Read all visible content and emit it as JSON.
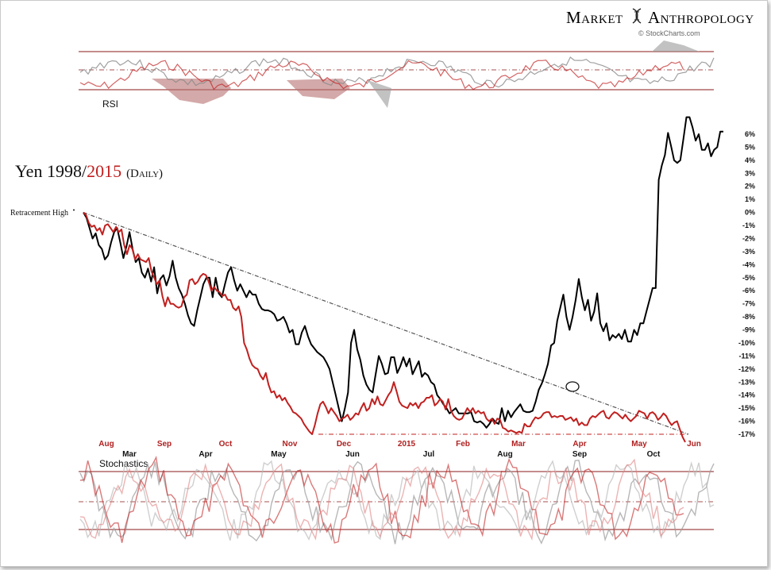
{
  "brand": {
    "name_left": "Market",
    "name_right": "Anthropology",
    "source": "© StockCharts.com"
  },
  "title": {
    "prefix": "Yen 1998/",
    "year_red": "2015",
    "suffix": "(Daily)"
  },
  "annotations": {
    "retracement_high": "Retracement High"
  },
  "colors": {
    "series_1998": "#000000",
    "series_2015": "#c0201f",
    "band_line": "#8b1a1a",
    "rsi_fill_red": "#b86f6f",
    "rsi_fill_gray": "#9a9a9a",
    "trendline": "#555555"
  },
  "panels": {
    "rsi_label": "RSI",
    "stochastics_label": "Stochastics"
  },
  "chart_data": {
    "type": "line",
    "ylim": [
      -17,
      6
    ],
    "y_ticks": [
      "6%",
      "5%",
      "4%",
      "3%",
      "2%",
      "1%",
      "0%",
      "-1%",
      "-2%",
      "-3%",
      "-4%",
      "-5%",
      "-6%",
      "-7%",
      "-8%",
      "-9%",
      "-10%",
      "-11%",
      "-12%",
      "-13%",
      "-14%",
      "-15%",
      "-16%",
      "-17%"
    ],
    "x_labels_2015": [
      "Aug",
      "Sep",
      "Oct",
      "Nov",
      "Dec",
      "2015",
      "Feb",
      "Mar",
      "Apr",
      "May",
      "Jun"
    ],
    "x_labels_1998": [
      "Mar",
      "Apr",
      "May",
      "Jun",
      "Jul",
      "Aug",
      "Sep",
      "Oct"
    ],
    "series": [
      {
        "name": "1998",
        "values": [
          0,
          -0.4,
          -1.2,
          -2.0,
          -1.6,
          -2.5,
          -2.8,
          -3.6,
          -3.3,
          -2.3,
          -1.5,
          -1.2,
          -2.3,
          -3.5,
          -2.6,
          -1.5,
          -2.8,
          -3.8,
          -3.5,
          -4.6,
          -5.0,
          -4.3,
          -5.3,
          -4.2,
          -6.2,
          -5.1,
          -4.8,
          -5.6,
          -4.9,
          -3.7,
          -5.0,
          -5.8,
          -6.3,
          -7.0,
          -7.9,
          -8.5,
          -8.7,
          -7.5,
          -6.5,
          -5.5,
          -5.0,
          -5.0,
          -6.5,
          -5.0,
          -6.2,
          -6.5,
          -5.5,
          -4.6,
          -4.2,
          -5.2,
          -6.0,
          -5.5,
          -6.0,
          -6.5,
          -6.0,
          -6.3,
          -6.3,
          -7.0,
          -7.4,
          -7.5,
          -7.5,
          -7.6,
          -7.8,
          -8.3,
          -8.2,
          -8.0,
          -8.5,
          -9.2,
          -9.0,
          -10.1,
          -10.1,
          -9.2,
          -8.7,
          -9.5,
          -10.1,
          -10.4,
          -10.7,
          -10.9,
          -11.1,
          -11.5,
          -12.0,
          -13.0,
          -14.0,
          -15.0,
          -16.0,
          -15.0,
          -13.8,
          -10.0,
          -9.0,
          -10.5,
          -11.3,
          -12.5,
          -13.2,
          -13.6,
          -13.8,
          -12.4,
          -11.0,
          -11.6,
          -12.4,
          -12.3,
          -11.1,
          -11.1,
          -12.3,
          -11.8,
          -11.1,
          -11.8,
          -11.2,
          -12.4,
          -11.9,
          -11.4,
          -12.6,
          -12.3,
          -12.5,
          -13.0,
          -13.2,
          -14.0,
          -14.3,
          -14.7,
          -15.0,
          -15.4,
          -15.2,
          -15.0,
          -15.4,
          -15.4,
          -15.4,
          -15.4,
          -15.3,
          -16.0,
          -16.1,
          -16.0,
          -16.2,
          -16.5,
          -16.2,
          -15.8,
          -16.1,
          -16.2,
          -15.0,
          -16.0,
          -15.2,
          -15.7,
          -15.3,
          -15.0,
          -14.7,
          -15.2,
          -15.3,
          -15.3,
          -15.2,
          -14.5,
          -13.6,
          -13.1,
          -12.4,
          -11.6,
          -10.2,
          -10.0,
          -8.3,
          -7.3,
          -6.3,
          -8.0,
          -9.0,
          -8.0,
          -6.7,
          -5.1,
          -6.5,
          -7.5,
          -6.7,
          -8.3,
          -7.6,
          -6.2,
          -8.5,
          -9.1,
          -8.5,
          -9.8,
          -9.4,
          -9.6,
          -9.3,
          -9.7,
          -9.0,
          -9.9,
          -9.9,
          -9.0,
          -9.4,
          -8.5,
          -8.5,
          -7.6,
          -6.7,
          -5.8,
          -5.8,
          2.5,
          3.6,
          4.4,
          6.1,
          5.1,
          4.0,
          3.8,
          4.0,
          5.6,
          7.3,
          7.3,
          6.5,
          5.5,
          6.0,
          4.8,
          4.8,
          5.3,
          4.3,
          4.8,
          5.0,
          6.2,
          6.2
        ]
      },
      {
        "name": "2015",
        "values": [
          0,
          -0.2,
          -0.8,
          -1.1,
          -1.0,
          -1.4,
          -1.2,
          -1.7,
          -1.0,
          -0.9,
          -1.2,
          -1.5,
          -1.1,
          -1.5,
          -1.3,
          -2.5,
          -3.2,
          -2.5,
          -2.8,
          -3.6,
          -3.2,
          -3.6,
          -3.7,
          -3.8,
          -3.5,
          -4.5,
          -5.0,
          -5.5,
          -5.2,
          -6.4,
          -7.2,
          -6.5,
          -7.0,
          -7.0,
          -7.2,
          -7.3,
          -7.2,
          -6.5,
          -6.3,
          -5.2,
          -5.1,
          -5.5,
          -5.3,
          -4.9,
          -4.7,
          -4.8,
          -5.3,
          -6.0,
          -5.7,
          -6.0,
          -6.1,
          -6.4,
          -6.3,
          -6.7,
          -6.7,
          -7.3,
          -7.5,
          -7.2,
          -8.0,
          -10.0,
          -10.5,
          -11.2,
          -11.7,
          -11.9,
          -12.0,
          -12.5,
          -12.8,
          -12.3,
          -13.2,
          -13.8,
          -13.7,
          -14.2,
          -14.0,
          -14.4,
          -14.2,
          -14.6,
          -14.9,
          -15.3,
          -15.4,
          -15.6,
          -15.8,
          -16.2,
          -16.5,
          -16.8,
          -17.0,
          -16.3,
          -15.4,
          -14.7,
          -14.5,
          -14.9,
          -15.4,
          -15.0,
          -15.3,
          -15.6,
          -16.0,
          -15.8,
          -15.7,
          -15.5,
          -15.9,
          -15.7,
          -15.4,
          -15.5,
          -15.0,
          -14.6,
          -15.2,
          -15.0,
          -14.3,
          -14.7,
          -14.1,
          -14.7,
          -14.8,
          -14.4,
          -14.0,
          -13.7,
          -13.0,
          -13.7,
          -14.5,
          -14.8,
          -14.9,
          -15.0,
          -14.6,
          -14.8,
          -14.6,
          -15.0,
          -14.6,
          -14.5,
          -14.2,
          -14.2,
          -14.0,
          -14.8,
          -14.6,
          -14.3,
          -14.5,
          -15.1,
          -14.3,
          -15.2,
          -15.6,
          -15.8,
          -15.9,
          -15.8,
          -15.4,
          -15.0,
          -15.3,
          -15.0,
          -15.4,
          -15.2,
          -15.4,
          -15.3,
          -15.8,
          -16.0,
          -15.8,
          -16.2,
          -15.8,
          -15.9,
          -16.5,
          -16.6,
          -16.8,
          -16.7,
          -16.8,
          -16.9,
          -16.8,
          -16.9,
          -16.2,
          -16.4,
          -16.4,
          -16.0,
          -15.7,
          -15.8,
          -15.7,
          -15.4,
          -15.3,
          -15.3,
          -15.7,
          -15.6,
          -15.7,
          -15.6,
          -15.6,
          -15.9,
          -15.8,
          -15.7,
          -16.0,
          -15.8,
          -16.3,
          -16.1,
          -16.3,
          -16.3,
          -15.8,
          -15.6,
          -15.7,
          -15.5,
          -15.3,
          -15.2,
          -15.7,
          -15.8,
          -15.5,
          -15.3,
          -15.4,
          -15.6,
          -15.8,
          -15.5,
          -15.8,
          -16.0,
          -15.8,
          -15.6,
          -15.2,
          -15.3,
          -15.4,
          -15.8,
          -15.4,
          -15.3,
          -15.5,
          -15.9,
          -15.7,
          -15.4,
          -15.6,
          -16.0,
          -16.3,
          -16.1,
          -16.0,
          -16.6,
          -17.2,
          -17.6
        ]
      }
    ]
  }
}
